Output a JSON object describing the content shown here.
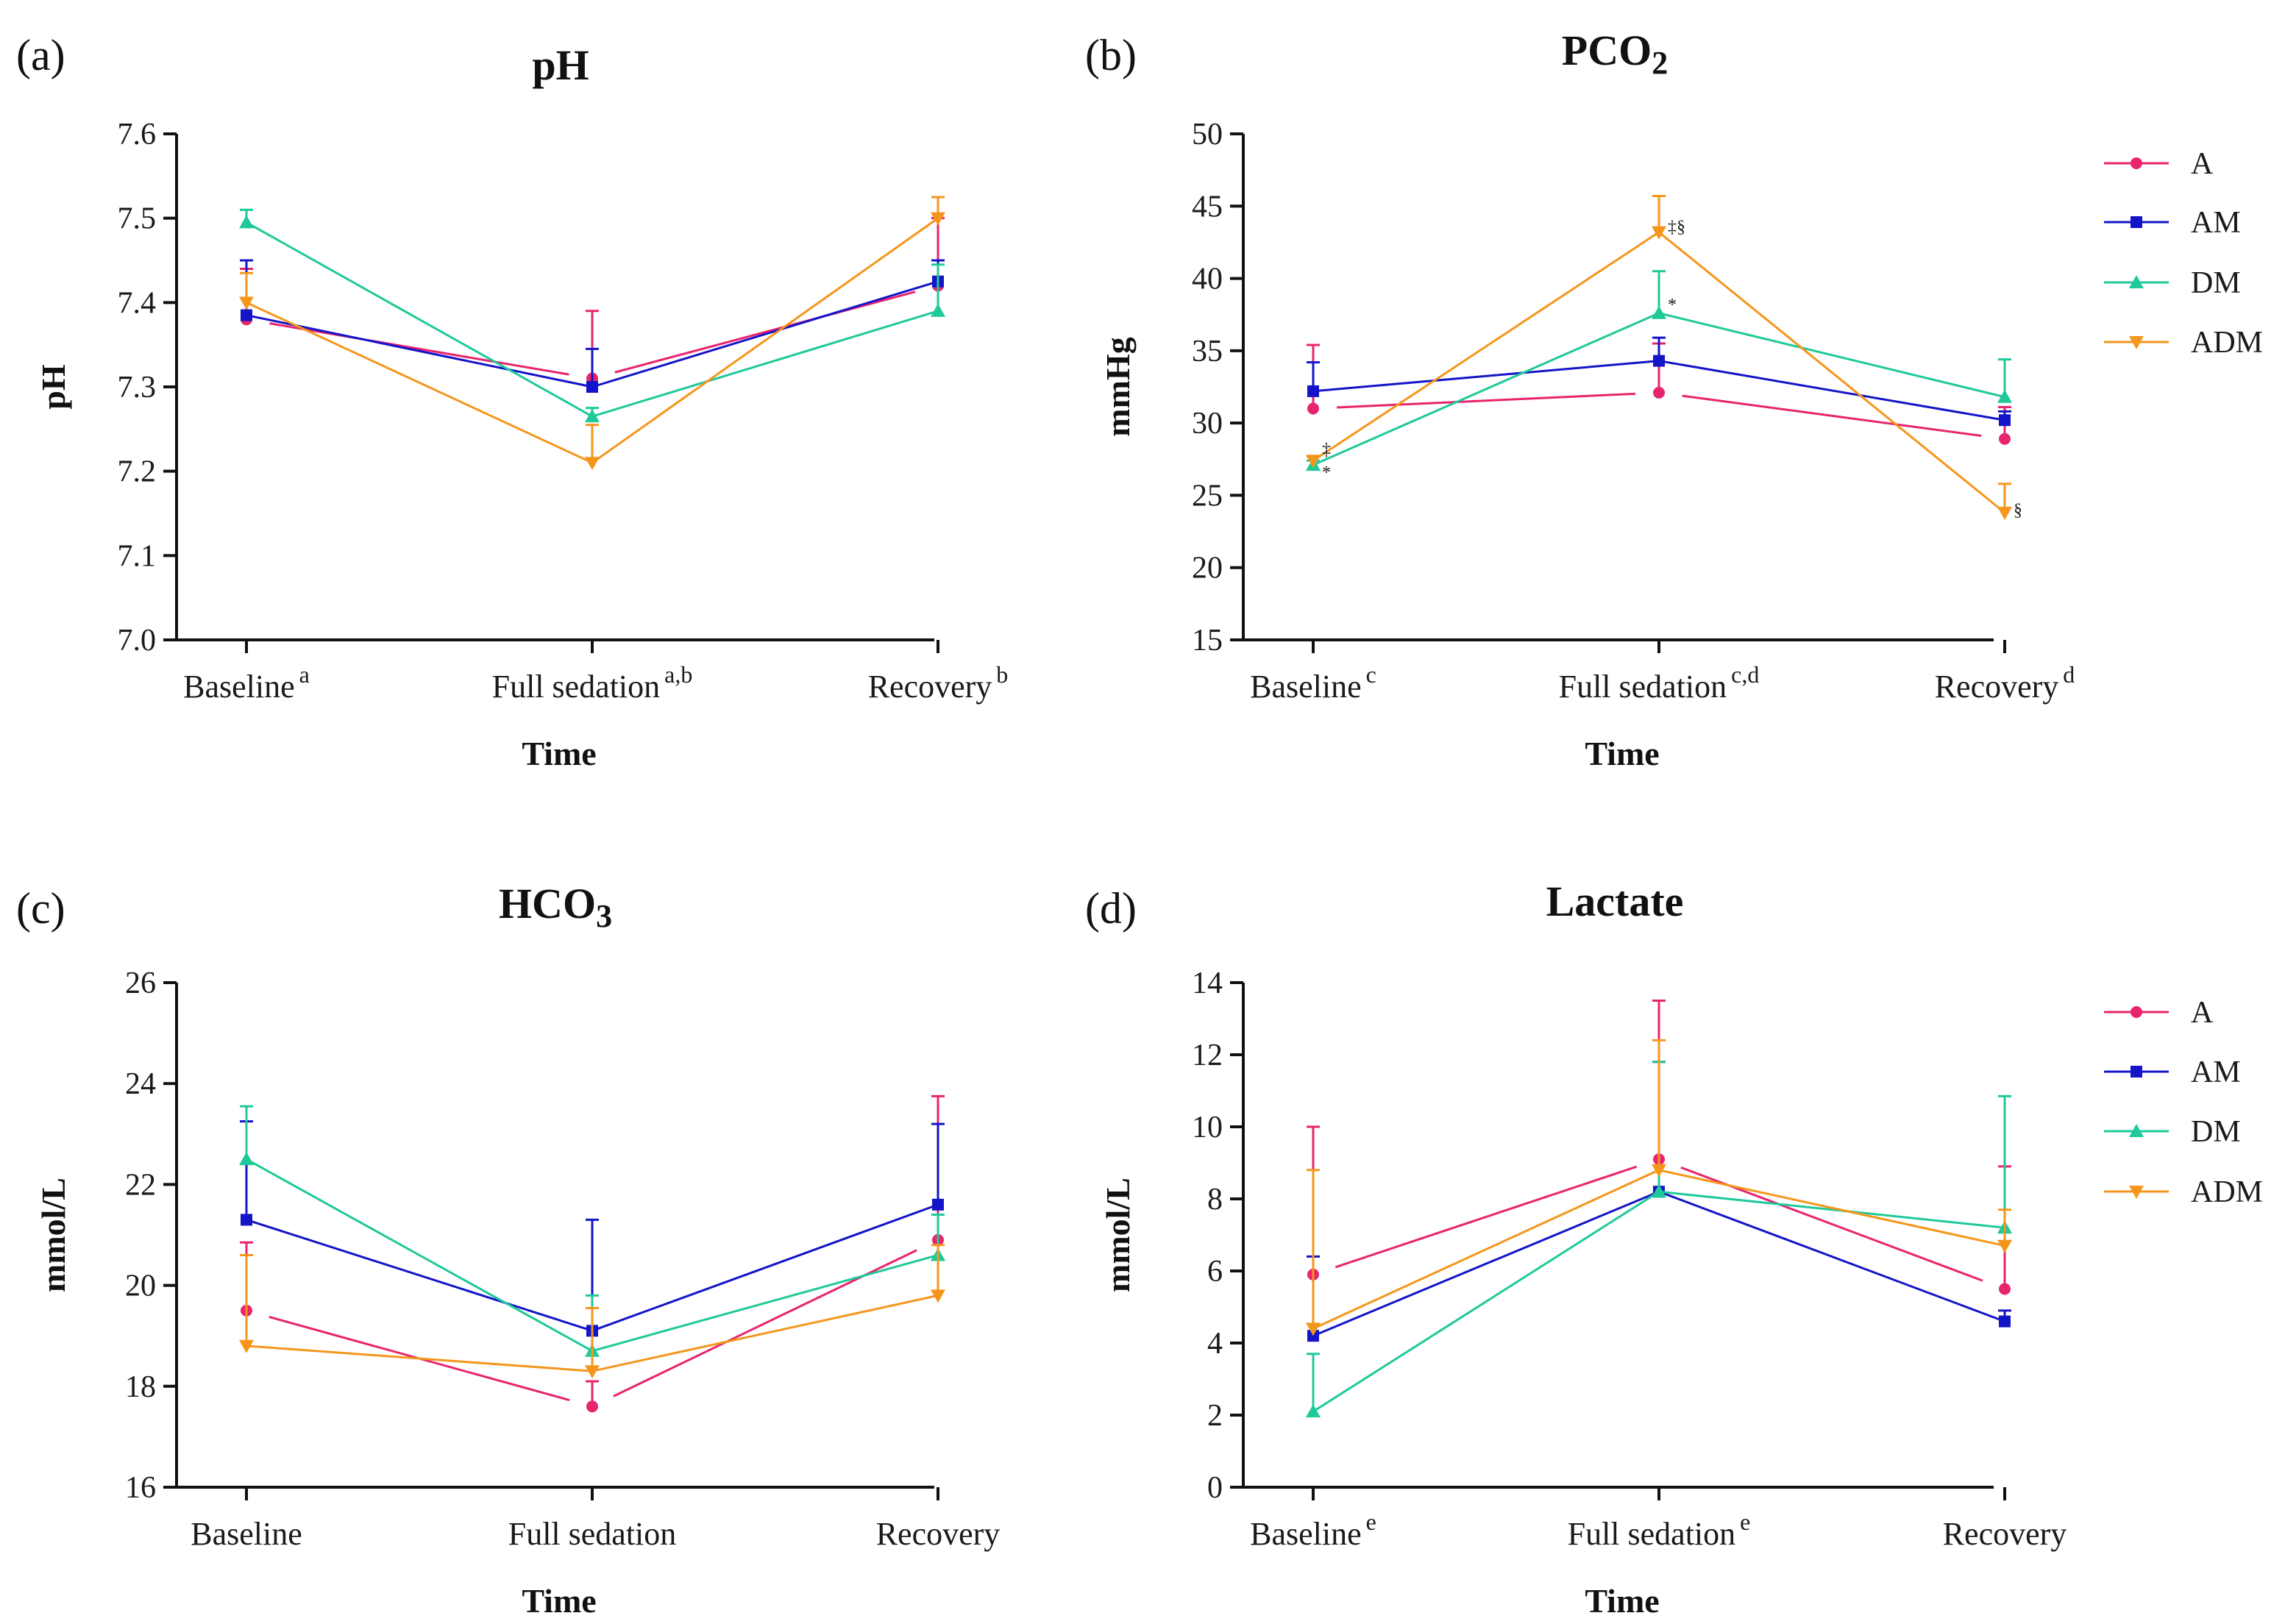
{
  "colors": {
    "A": "#e8246e",
    "AM": "#1414c8",
    "DM": "#1fc99a",
    "ADM": "#f5961c"
  },
  "legend": [
    "A",
    "AM",
    "DM",
    "ADM"
  ],
  "chart_data": [
    {
      "type": "line",
      "panel": "(a)",
      "title": "pH",
      "title_sub": "",
      "xlabel": "Time",
      "ylabel": "pH",
      "ylim": [
        7.0,
        7.6
      ],
      "yticks": [
        "7.0",
        "7.1",
        "7.2",
        "7.3",
        "7.4",
        "7.5",
        "7.6"
      ],
      "categories": [
        "Baseline",
        "Full sedation",
        "Recovery"
      ],
      "category_sups": [
        "a",
        "a,b",
        "b"
      ],
      "series": [
        {
          "name": "A",
          "values": [
            7.38,
            7.31,
            7.42
          ],
          "errors": [
            0.06,
            0.08,
            0.08
          ]
        },
        {
          "name": "AM",
          "values": [
            7.385,
            7.3,
            7.425
          ],
          "errors": [
            0.065,
            0.045,
            0.025
          ]
        },
        {
          "name": "DM",
          "values": [
            7.495,
            7.265,
            7.39
          ],
          "errors": [
            0.015,
            0.01,
            0.055
          ]
        },
        {
          "name": "ADM",
          "values": [
            7.4,
            7.21,
            7.5
          ],
          "errors": [
            0.035,
            0.045,
            0.025
          ]
        }
      ],
      "annotations": []
    },
    {
      "type": "line",
      "panel": "(b)",
      "title": "PCO",
      "title_sub": "2",
      "xlabel": "Time",
      "ylabel": "mmHg",
      "ylim": [
        15,
        50
      ],
      "yticks": [
        "15",
        "20",
        "25",
        "30",
        "35",
        "40",
        "45",
        "50"
      ],
      "categories": [
        "Baseline",
        "Full sedation",
        "Recovery"
      ],
      "category_sups": [
        "c",
        "c,d",
        "d"
      ],
      "series": [
        {
          "name": "A",
          "values": [
            31.0,
            32.1,
            28.9
          ],
          "errors": [
            4.4,
            3.4,
            2.2
          ]
        },
        {
          "name": "AM",
          "values": [
            32.2,
            34.3,
            30.2
          ],
          "errors": [
            2.0,
            1.6,
            0.6
          ]
        },
        {
          "name": "DM",
          "values": [
            27.1,
            37.6,
            31.8
          ],
          "errors": [
            0.3,
            2.9,
            2.6
          ]
        },
        {
          "name": "ADM",
          "values": [
            27.4,
            43.2,
            23.8
          ],
          "errors": [
            0.3,
            2.5,
            2.0
          ]
        }
      ],
      "annotations": [
        {
          "text": "‡",
          "category": 0,
          "y": 28.2
        },
        {
          "text": "*",
          "category": 0,
          "y": 26.6
        },
        {
          "text": "‡§",
          "category": 1,
          "y": 43.6
        },
        {
          "text": "*",
          "category": 1,
          "y": 38.2
        },
        {
          "text": "§",
          "category": 2,
          "y": 24.0
        }
      ]
    },
    {
      "type": "line",
      "panel": "(c)",
      "title": "HCO",
      "title_sub": "3",
      "xlabel": "Time",
      "ylabel": "mmol/L",
      "ylim": [
        16,
        26
      ],
      "yticks": [
        "16",
        "18",
        "20",
        "22",
        "24",
        "26"
      ],
      "categories": [
        "Baseline",
        "Full sedation",
        "Recovery"
      ],
      "category_sups": [
        "",
        "",
        ""
      ],
      "series": [
        {
          "name": "A",
          "values": [
            19.5,
            17.6,
            20.9
          ],
          "errors": [
            1.35,
            0.5,
            2.85
          ]
        },
        {
          "name": "AM",
          "values": [
            21.3,
            19.1,
            21.6
          ],
          "errors": [
            1.95,
            2.2,
            1.6
          ]
        },
        {
          "name": "DM",
          "values": [
            22.5,
            18.7,
            20.6
          ],
          "errors": [
            1.05,
            1.1,
            0.8
          ]
        },
        {
          "name": "ADM",
          "values": [
            18.8,
            18.3,
            19.8
          ],
          "errors": [
            1.8,
            1.25,
            1.0
          ]
        }
      ],
      "annotations": []
    },
    {
      "type": "line",
      "panel": "(d)",
      "title": "Lactate",
      "title_sub": "",
      "xlabel": "Time",
      "ylabel": "mmol/L",
      "ylim": [
        0,
        14
      ],
      "yticks": [
        "0",
        "2",
        "4",
        "6",
        "8",
        "10",
        "12",
        "14"
      ],
      "categories": [
        "Baseline",
        "Full sedation",
        "Recovery"
      ],
      "category_sups": [
        "e",
        "e",
        ""
      ],
      "series": [
        {
          "name": "A",
          "values": [
            5.9,
            9.1,
            5.5
          ],
          "errors": [
            4.1,
            4.4,
            3.4
          ]
        },
        {
          "name": "AM",
          "values": [
            4.2,
            8.2,
            4.6
          ],
          "errors": [
            2.2,
            3.6,
            0.3
          ]
        },
        {
          "name": "DM",
          "values": [
            2.1,
            8.2,
            7.2
          ],
          "errors": [
            1.6,
            3.6,
            3.65
          ]
        },
        {
          "name": "ADM",
          "values": [
            4.4,
            8.8,
            6.7
          ],
          "errors": [
            4.4,
            3.6,
            1.0
          ]
        }
      ],
      "annotations": []
    }
  ]
}
